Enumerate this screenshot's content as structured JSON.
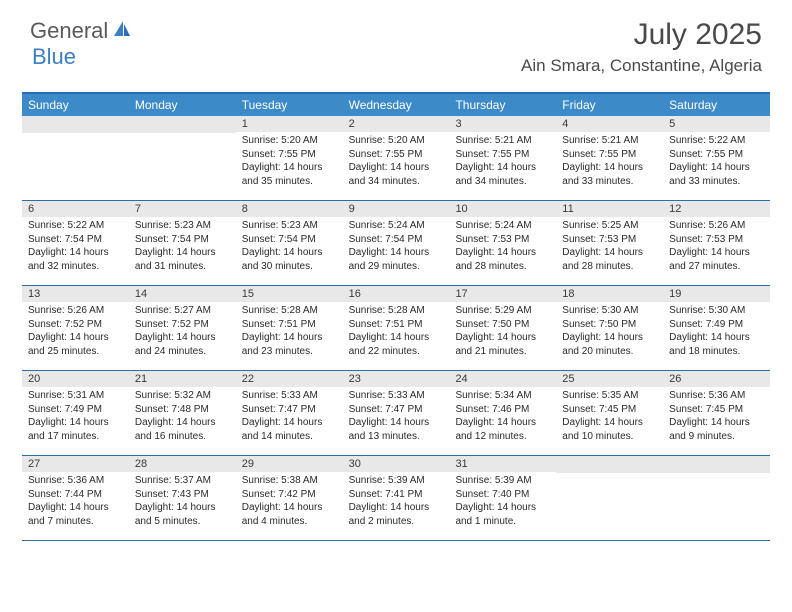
{
  "logo": {
    "text1": "General",
    "text2": "Blue"
  },
  "title": "July 2025",
  "location": "Ain Smara, Constantine, Algeria",
  "colors": {
    "header_bg": "#3d8ac9",
    "header_text": "#ffffff",
    "border": "#2a6db5",
    "daynum_bg": "#e8e8e8",
    "text": "#2a2a2a",
    "logo_blue": "#3a7fc4",
    "logo_gray": "#5a5a5a"
  },
  "weekdays": [
    "Sunday",
    "Monday",
    "Tuesday",
    "Wednesday",
    "Thursday",
    "Friday",
    "Saturday"
  ],
  "weeks": [
    [
      null,
      null,
      {
        "n": "1",
        "sr": "5:20 AM",
        "ss": "7:55 PM",
        "dl": "14 hours and 35 minutes."
      },
      {
        "n": "2",
        "sr": "5:20 AM",
        "ss": "7:55 PM",
        "dl": "14 hours and 34 minutes."
      },
      {
        "n": "3",
        "sr": "5:21 AM",
        "ss": "7:55 PM",
        "dl": "14 hours and 34 minutes."
      },
      {
        "n": "4",
        "sr": "5:21 AM",
        "ss": "7:55 PM",
        "dl": "14 hours and 33 minutes."
      },
      {
        "n": "5",
        "sr": "5:22 AM",
        "ss": "7:55 PM",
        "dl": "14 hours and 33 minutes."
      }
    ],
    [
      {
        "n": "6",
        "sr": "5:22 AM",
        "ss": "7:54 PM",
        "dl": "14 hours and 32 minutes."
      },
      {
        "n": "7",
        "sr": "5:23 AM",
        "ss": "7:54 PM",
        "dl": "14 hours and 31 minutes."
      },
      {
        "n": "8",
        "sr": "5:23 AM",
        "ss": "7:54 PM",
        "dl": "14 hours and 30 minutes."
      },
      {
        "n": "9",
        "sr": "5:24 AM",
        "ss": "7:54 PM",
        "dl": "14 hours and 29 minutes."
      },
      {
        "n": "10",
        "sr": "5:24 AM",
        "ss": "7:53 PM",
        "dl": "14 hours and 28 minutes."
      },
      {
        "n": "11",
        "sr": "5:25 AM",
        "ss": "7:53 PM",
        "dl": "14 hours and 28 minutes."
      },
      {
        "n": "12",
        "sr": "5:26 AM",
        "ss": "7:53 PM",
        "dl": "14 hours and 27 minutes."
      }
    ],
    [
      {
        "n": "13",
        "sr": "5:26 AM",
        "ss": "7:52 PM",
        "dl": "14 hours and 25 minutes."
      },
      {
        "n": "14",
        "sr": "5:27 AM",
        "ss": "7:52 PM",
        "dl": "14 hours and 24 minutes."
      },
      {
        "n": "15",
        "sr": "5:28 AM",
        "ss": "7:51 PM",
        "dl": "14 hours and 23 minutes."
      },
      {
        "n": "16",
        "sr": "5:28 AM",
        "ss": "7:51 PM",
        "dl": "14 hours and 22 minutes."
      },
      {
        "n": "17",
        "sr": "5:29 AM",
        "ss": "7:50 PM",
        "dl": "14 hours and 21 minutes."
      },
      {
        "n": "18",
        "sr": "5:30 AM",
        "ss": "7:50 PM",
        "dl": "14 hours and 20 minutes."
      },
      {
        "n": "19",
        "sr": "5:30 AM",
        "ss": "7:49 PM",
        "dl": "14 hours and 18 minutes."
      }
    ],
    [
      {
        "n": "20",
        "sr": "5:31 AM",
        "ss": "7:49 PM",
        "dl": "14 hours and 17 minutes."
      },
      {
        "n": "21",
        "sr": "5:32 AM",
        "ss": "7:48 PM",
        "dl": "14 hours and 16 minutes."
      },
      {
        "n": "22",
        "sr": "5:33 AM",
        "ss": "7:47 PM",
        "dl": "14 hours and 14 minutes."
      },
      {
        "n": "23",
        "sr": "5:33 AM",
        "ss": "7:47 PM",
        "dl": "14 hours and 13 minutes."
      },
      {
        "n": "24",
        "sr": "5:34 AM",
        "ss": "7:46 PM",
        "dl": "14 hours and 12 minutes."
      },
      {
        "n": "25",
        "sr": "5:35 AM",
        "ss": "7:45 PM",
        "dl": "14 hours and 10 minutes."
      },
      {
        "n": "26",
        "sr": "5:36 AM",
        "ss": "7:45 PM",
        "dl": "14 hours and 9 minutes."
      }
    ],
    [
      {
        "n": "27",
        "sr": "5:36 AM",
        "ss": "7:44 PM",
        "dl": "14 hours and 7 minutes."
      },
      {
        "n": "28",
        "sr": "5:37 AM",
        "ss": "7:43 PM",
        "dl": "14 hours and 5 minutes."
      },
      {
        "n": "29",
        "sr": "5:38 AM",
        "ss": "7:42 PM",
        "dl": "14 hours and 4 minutes."
      },
      {
        "n": "30",
        "sr": "5:39 AM",
        "ss": "7:41 PM",
        "dl": "14 hours and 2 minutes."
      },
      {
        "n": "31",
        "sr": "5:39 AM",
        "ss": "7:40 PM",
        "dl": "14 hours and 1 minute."
      },
      null,
      null
    ]
  ]
}
